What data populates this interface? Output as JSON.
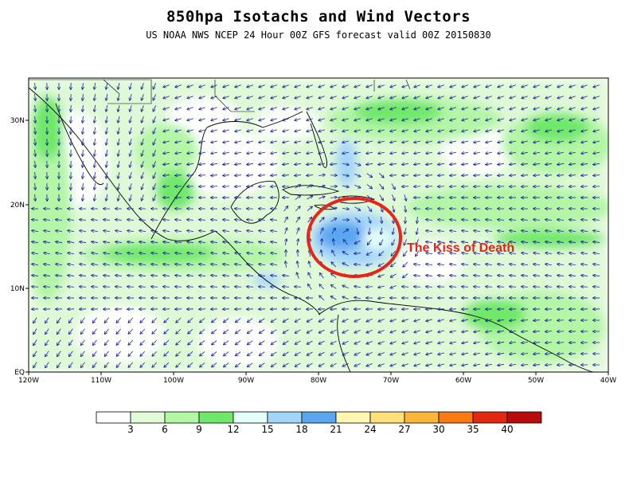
{
  "header": {
    "title": "850hpa Isotachs and Wind Vectors",
    "subtitle": "US NOAA NWS NCEP 24 Hour 00Z GFS forecast valid 00Z 20150830"
  },
  "map": {
    "lat_labels": [
      "30N",
      "20N",
      "10N",
      "EQ"
    ],
    "lon_labels": [
      "120W",
      "110W",
      "100W",
      "90W",
      "80W",
      "70W",
      "60W",
      "50W",
      "40W"
    ],
    "annotation": "The Kiss of Death",
    "annotation_color": "#e8231c",
    "vector_color": "#1c1ca0"
  },
  "colorbar": {
    "colors": [
      "#ffffff",
      "#e0fbd8",
      "#b2f6a6",
      "#6fe86a",
      "#e2fff8",
      "#a3d5fa",
      "#5aa6f0",
      "#fff6b2",
      "#fde07a",
      "#fbb53b",
      "#f87a14",
      "#e2280f",
      "#b80b0b"
    ],
    "labels": [
      "3",
      "6",
      "9",
      "12",
      "15",
      "18",
      "21",
      "24",
      "27",
      "30",
      "35",
      "40"
    ]
  }
}
